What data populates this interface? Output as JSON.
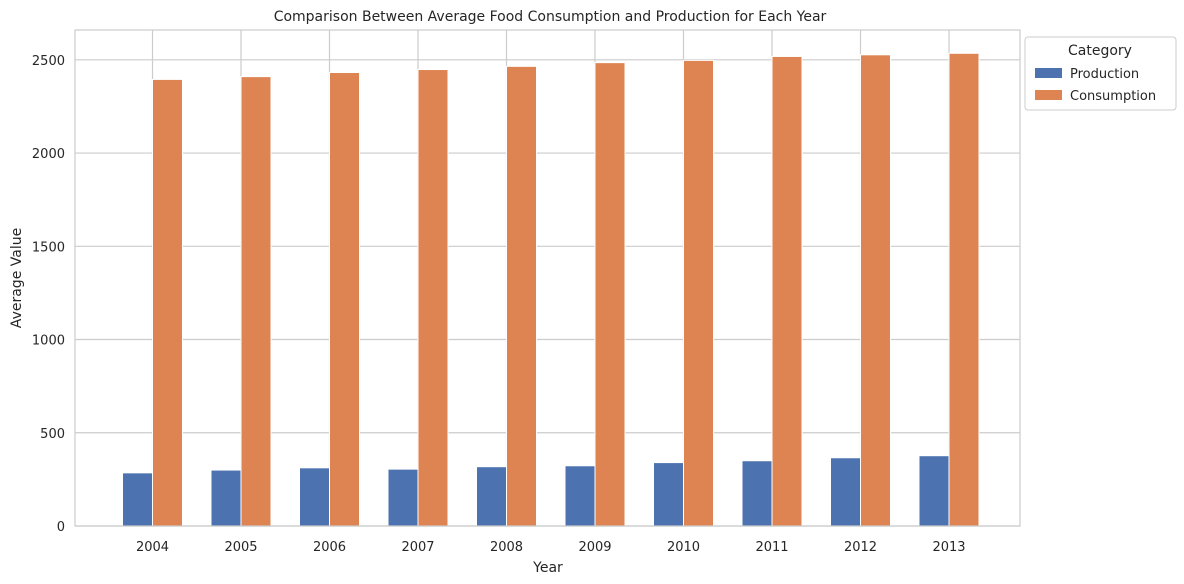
{
  "chart_data": {
    "type": "bar",
    "title": "Comparison Between Average Food Consumption and Production for Each Year",
    "xlabel": "Year",
    "ylabel": "Average Value",
    "categories": [
      "2004",
      "2005",
      "2006",
      "2007",
      "2008",
      "2009",
      "2010",
      "2011",
      "2012",
      "2013"
    ],
    "series": [
      {
        "name": "Production",
        "color": "#4c72b0",
        "values": [
          285,
          300,
          312,
          305,
          318,
          323,
          340,
          350,
          366,
          377
        ]
      },
      {
        "name": "Consumption",
        "color": "#dd8452",
        "values": [
          2395,
          2410,
          2432,
          2448,
          2465,
          2485,
          2497,
          2518,
          2527,
          2535
        ]
      }
    ],
    "ylim": [
      0,
      2660
    ],
    "yticks": [
      0,
      500,
      1000,
      1500,
      2000,
      2500
    ],
    "grid": true,
    "legend": {
      "title": "Category",
      "placement": "outside top-right"
    }
  }
}
